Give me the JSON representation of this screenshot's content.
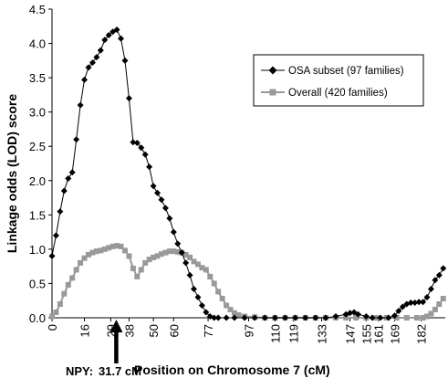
{
  "chart_data": {
    "type": "line",
    "xlabel": "Position on Chromosome 7 (cM)",
    "ylabel": "Linkage odds (LOD) score",
    "ylim": [
      0,
      4.5
    ],
    "y_ticks": [
      "0.0",
      "0.5",
      "1.0",
      "1.5",
      "2.0",
      "2.5",
      "3.0",
      "3.5",
      "4.0",
      "4.5"
    ],
    "x_ticks": [
      "0",
      "16",
      "29",
      "38",
      "50",
      "60",
      "77",
      "97",
      "110",
      "119",
      "133",
      "147",
      "155",
      "161",
      "169",
      "182"
    ],
    "legend_position": "top-right",
    "annotation": {
      "label": "NPY:",
      "value": "31.7 cM",
      "x": 31.7
    },
    "series": [
      {
        "name": "OSA subset (97 families)",
        "color": "#000000",
        "marker": "diamond",
        "points": [
          [
            0,
            0.9
          ],
          [
            2,
            1.2
          ],
          [
            4,
            1.55
          ],
          [
            6,
            1.85
          ],
          [
            8,
            2.03
          ],
          [
            10,
            2.12
          ],
          [
            12,
            2.6
          ],
          [
            14,
            3.1
          ],
          [
            16,
            3.47
          ],
          [
            18,
            3.65
          ],
          [
            20,
            3.72
          ],
          [
            22,
            3.8
          ],
          [
            24,
            3.9
          ],
          [
            26,
            4.05
          ],
          [
            28,
            4.12
          ],
          [
            30,
            4.17
          ],
          [
            32,
            4.2
          ],
          [
            34,
            4.07
          ],
          [
            36,
            3.75
          ],
          [
            38,
            3.2
          ],
          [
            40,
            2.56
          ],
          [
            42,
            2.55
          ],
          [
            44,
            2.48
          ],
          [
            46,
            2.38
          ],
          [
            48,
            2.2
          ],
          [
            50,
            1.92
          ],
          [
            52,
            1.82
          ],
          [
            54,
            1.72
          ],
          [
            56,
            1.6
          ],
          [
            58,
            1.45
          ],
          [
            60,
            1.25
          ],
          [
            62,
            1.08
          ],
          [
            64,
            0.95
          ],
          [
            66,
            0.8
          ],
          [
            68,
            0.62
          ],
          [
            70,
            0.42
          ],
          [
            72,
            0.3
          ],
          [
            74,
            0.18
          ],
          [
            76,
            0.08
          ],
          [
            78,
            0.02
          ],
          [
            80,
            0.0
          ],
          [
            82,
            0.0
          ],
          [
            86,
            0.0
          ],
          [
            90,
            0.0
          ],
          [
            95,
            0.0
          ],
          [
            100,
            0.0
          ],
          [
            105,
            0.0
          ],
          [
            110,
            0.0
          ],
          [
            115,
            0.0
          ],
          [
            120,
            0.0
          ],
          [
            125,
            0.0
          ],
          [
            130,
            0.0
          ],
          [
            135,
            0.0
          ],
          [
            140,
            0.02
          ],
          [
            145,
            0.05
          ],
          [
            147,
            0.07
          ],
          [
            149,
            0.08
          ],
          [
            151,
            0.05
          ],
          [
            155,
            0.02
          ],
          [
            158,
            0.0
          ],
          [
            162,
            0.0
          ],
          [
            166,
            0.0
          ],
          [
            169,
            0.03
          ],
          [
            171,
            0.1
          ],
          [
            173,
            0.16
          ],
          [
            175,
            0.2
          ],
          [
            177,
            0.22
          ],
          [
            179,
            0.22
          ],
          [
            181,
            0.23
          ],
          [
            183,
            0.23
          ],
          [
            185,
            0.3
          ],
          [
            187,
            0.42
          ],
          [
            189,
            0.55
          ],
          [
            191,
            0.62
          ],
          [
            193,
            0.72
          ]
        ]
      },
      {
        "name": "Overall (420 families)",
        "color": "#999999",
        "marker": "square",
        "points": [
          [
            0,
            0.02
          ],
          [
            2,
            0.08
          ],
          [
            4,
            0.2
          ],
          [
            6,
            0.35
          ],
          [
            8,
            0.48
          ],
          [
            10,
            0.58
          ],
          [
            12,
            0.7
          ],
          [
            14,
            0.8
          ],
          [
            16,
            0.87
          ],
          [
            18,
            0.92
          ],
          [
            20,
            0.95
          ],
          [
            22,
            0.97
          ],
          [
            24,
            0.98
          ],
          [
            26,
            1.0
          ],
          [
            28,
            1.02
          ],
          [
            30,
            1.04
          ],
          [
            32,
            1.05
          ],
          [
            34,
            1.04
          ],
          [
            36,
            0.98
          ],
          [
            38,
            0.9
          ],
          [
            40,
            0.72
          ],
          [
            42,
            0.6
          ],
          [
            44,
            0.7
          ],
          [
            46,
            0.8
          ],
          [
            48,
            0.85
          ],
          [
            50,
            0.88
          ],
          [
            52,
            0.9
          ],
          [
            54,
            0.93
          ],
          [
            56,
            0.95
          ],
          [
            58,
            0.97
          ],
          [
            60,
            0.97
          ],
          [
            62,
            0.96
          ],
          [
            64,
            0.95
          ],
          [
            66,
            0.92
          ],
          [
            68,
            0.88
          ],
          [
            70,
            0.82
          ],
          [
            72,
            0.78
          ],
          [
            74,
            0.73
          ],
          [
            76,
            0.7
          ],
          [
            78,
            0.6
          ],
          [
            80,
            0.5
          ],
          [
            82,
            0.38
          ],
          [
            84,
            0.28
          ],
          [
            86,
            0.18
          ],
          [
            88,
            0.12
          ],
          [
            90,
            0.07
          ],
          [
            92,
            0.04
          ],
          [
            95,
            0.02
          ],
          [
            100,
            0.01
          ],
          [
            105,
            0.0
          ],
          [
            110,
            0.0
          ],
          [
            115,
            0.0
          ],
          [
            120,
            0.0
          ],
          [
            125,
            0.0
          ],
          [
            130,
            0.0
          ],
          [
            135,
            0.0
          ],
          [
            140,
            0.0
          ],
          [
            145,
            0.0
          ],
          [
            150,
            0.0
          ],
          [
            155,
            0.0
          ],
          [
            160,
            0.0
          ],
          [
            165,
            0.0
          ],
          [
            170,
            0.0
          ],
          [
            175,
            0.0
          ],
          [
            180,
            0.0
          ],
          [
            183,
            0.0
          ],
          [
            185,
            0.02
          ],
          [
            187,
            0.06
          ],
          [
            189,
            0.12
          ],
          [
            191,
            0.2
          ],
          [
            193,
            0.28
          ]
        ]
      }
    ]
  }
}
